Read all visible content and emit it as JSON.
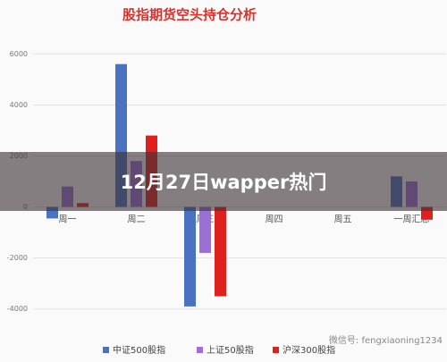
{
  "chart_data": {
    "type": "bar",
    "title": "股指期货空头持仓分析",
    "categories": [
      "周一",
      "周二",
      "周三",
      "周四",
      "周五",
      "一周汇总"
    ],
    "series": [
      {
        "name": "中证500股指",
        "color": "#4a72c0",
        "values": [
          -450,
          5600,
          -3900,
          null,
          null,
          1200
        ]
      },
      {
        "name": "上证50股指",
        "color": "#9b6fd6",
        "values": [
          800,
          1800,
          -1800,
          null,
          null,
          1000
        ]
      },
      {
        "name": "沪深300股指",
        "color": "#e0201c",
        "values": [
          150,
          2800,
          -3500,
          null,
          null,
          -500
        ]
      }
    ],
    "ylim": [
      -4500,
      6500
    ],
    "yticks": [
      6000,
      4000,
      2000,
      0,
      -2000,
      -4000
    ],
    "grid": true
  },
  "banner": "12月27日wapper热门",
  "watermark": "微信号: fengxiaoning1234"
}
